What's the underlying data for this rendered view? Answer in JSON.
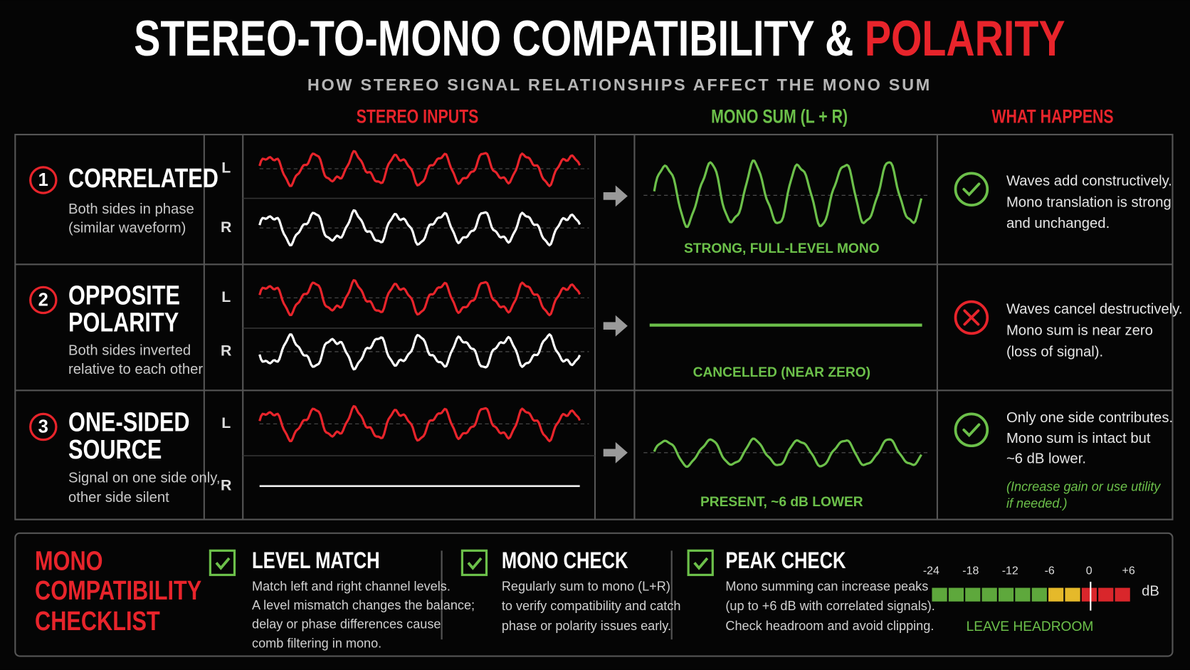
{
  "header": {
    "title": "STEREO-TO-MONO COMPATIBILITY & ",
    "title_highlight": "POLARITY",
    "subtitle": "HOW STEREO SIGNAL RELATIONSHIPS AFFECT THE MONO SUM"
  },
  "columns": [
    "STEREO INPUTS",
    "MONO SUM (L + R)",
    "WHAT HAPPENS"
  ],
  "rows": [
    {
      "number": "1",
      "title": [
        "CORRELATED"
      ],
      "description": [
        "Both sides in phase",
        "(similar waveform)"
      ],
      "left": "L",
      "right": "R",
      "result": "STRONG, FULL-LEVEL MONO",
      "explanation": [
        "Waves add constructively.",
        "Mono translation is strong",
        "and unchanged."
      ]
    },
    {
      "number": "2",
      "title": [
        "OPPOSITE",
        "POLARITY"
      ],
      "description": [
        "Both sides inverted",
        "relative to each other"
      ],
      "left": "L",
      "right": "R",
      "result": "CANCELLED (NEAR ZERO)",
      "explanation": [
        "Waves cancel destructively.",
        "Mono sum is near zero",
        "(loss of signal)."
      ]
    },
    {
      "number": "3",
      "title": [
        "ONE-SIDED",
        "SOURCE"
      ],
      "description": [
        "Signal on one side only,",
        "other side silent"
      ],
      "left": "L",
      "right": "R",
      "result": "PRESENT, ~6 dB LOWER",
      "explanation": [
        "Only one side contributes.",
        "Mono sum is intact but",
        "~6 dB lower."
      ],
      "note": [
        "(Increase gain or use utility",
        "if needed.)"
      ]
    }
  ],
  "checklist": {
    "title": [
      "MONO",
      "COMPATIBILITY",
      "CHECKLIST"
    ],
    "items": [
      {
        "title": "LEVEL MATCH",
        "lines": [
          "Match left and right channel levels.",
          "A level mismatch changes the balance;",
          "delay or phase differences cause",
          "comb filtering in mono."
        ]
      },
      {
        "title": "MONO CHECK",
        "lines": [
          "Regularly sum to mono (L+R)",
          "to verify compatibility and catch",
          "phase or polarity issues early."
        ]
      },
      {
        "title": "PEAK CHECK",
        "lines": [
          "Mono summing can increase peaks",
          "(up to +6 dB with correlated signals).",
          "Check headroom and avoid clipping."
        ]
      }
    ],
    "meter": {
      "ticks": [
        "-24",
        "-18",
        "-12",
        "-6",
        "0",
        "+6"
      ],
      "unit": "dB",
      "caption": "LEAVE HEADROOM"
    }
  }
}
